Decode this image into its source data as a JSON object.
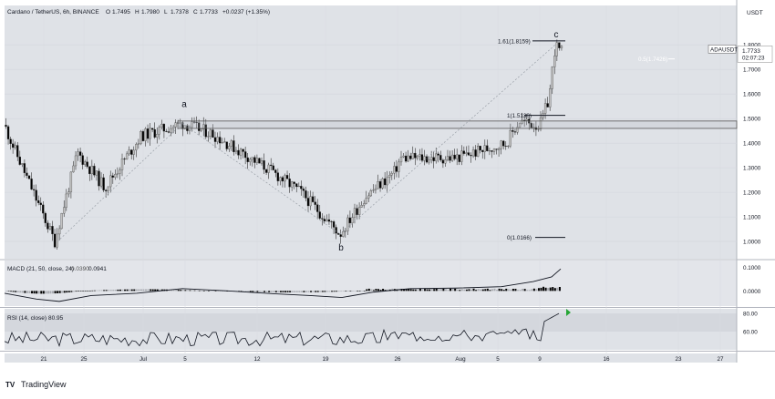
{
  "header": {
    "symbol_line": "Cardano / TetherUS, 6h, BINANCE",
    "ohlc": [
      {
        "label": "O",
        "value": "1.7495"
      },
      {
        "label": "H",
        "value": "1.7980"
      },
      {
        "label": "L",
        "value": "1.7378"
      },
      {
        "label": "C",
        "value": "1.7733"
      }
    ],
    "change": "+0.0237 (+1.35%)",
    "currency": "USDT"
  },
  "price_badge": {
    "ticker": "ADAUSDT",
    "price": "1.7733",
    "countdown": "02:07:23"
  },
  "annotations": {
    "wave_a": "a",
    "wave_b": "b",
    "wave_c": "c",
    "fib_161": "1.61(1.8159)",
    "fib_1": "1(1.5130)",
    "fib_0": "0(1.0166)",
    "fib_05": "0.5(1.7426)"
  },
  "macd": {
    "title": "MACD (21, 50, close, 24)",
    "v1": "0.0390",
    "v2": "0.0941"
  },
  "rsi": {
    "title": "RSI (14, close)",
    "value": "80.95"
  },
  "branding": "TradingView",
  "colors": {
    "up": "#c2c2c2",
    "down": "#000000",
    "panel_bg": "#dfe2e7",
    "macd_bg": "#e3e5ea",
    "rsi_band": "#d4d7dd",
    "rsi_arrow": "#26a636"
  },
  "chart_data": [
    {
      "type": "candlestick",
      "title": "Cardano / TetherUS, 6h, BINANCE",
      "x_ticks": [
        "21",
        "25",
        "Jul",
        "5",
        "12",
        "19",
        "26",
        "Aug",
        "5",
        "9",
        "16",
        "23",
        "27"
      ],
      "y_ticks": [
        1.0,
        1.1,
        1.2,
        1.3,
        1.4,
        1.5,
        1.6,
        1.7,
        1.8
      ],
      "ylim": [
        0.93,
        1.96
      ],
      "scale": "linear",
      "key_points": [
        {
          "label": "start",
          "value": 1.52
        },
        {
          "label": "low",
          "value": 1.0
        },
        {
          "label": "a",
          "value": 1.48
        },
        {
          "label": "b",
          "value": 1.03
        },
        {
          "label": "c",
          "value": 1.8
        }
      ],
      "zone": [
        1.46,
        1.49
      ],
      "fib_levels": [
        {
          "label": "1.61(1.8159)",
          "value": 1.8159
        },
        {
          "label": "1(1.5130)",
          "value": 1.513
        },
        {
          "label": "0(1.0166)",
          "value": 1.0166
        },
        {
          "label": "0.5(1.7426)",
          "value": 1.7426
        }
      ],
      "last_price": 1.7733,
      "grid": true
    },
    {
      "type": "line",
      "title": "MACD (21, 50, close, 24)",
      "y_ticks": [
        0.1,
        0.0
      ],
      "ylim": [
        -0.065,
        0.13
      ],
      "last_value": 0.0941
    },
    {
      "type": "line",
      "title": "RSI (14, close)",
      "y_ticks": [
        80,
        60
      ],
      "ylim": [
        40,
        85
      ],
      "band": [
        60,
        80
      ],
      "last_value": 80.95
    }
  ]
}
